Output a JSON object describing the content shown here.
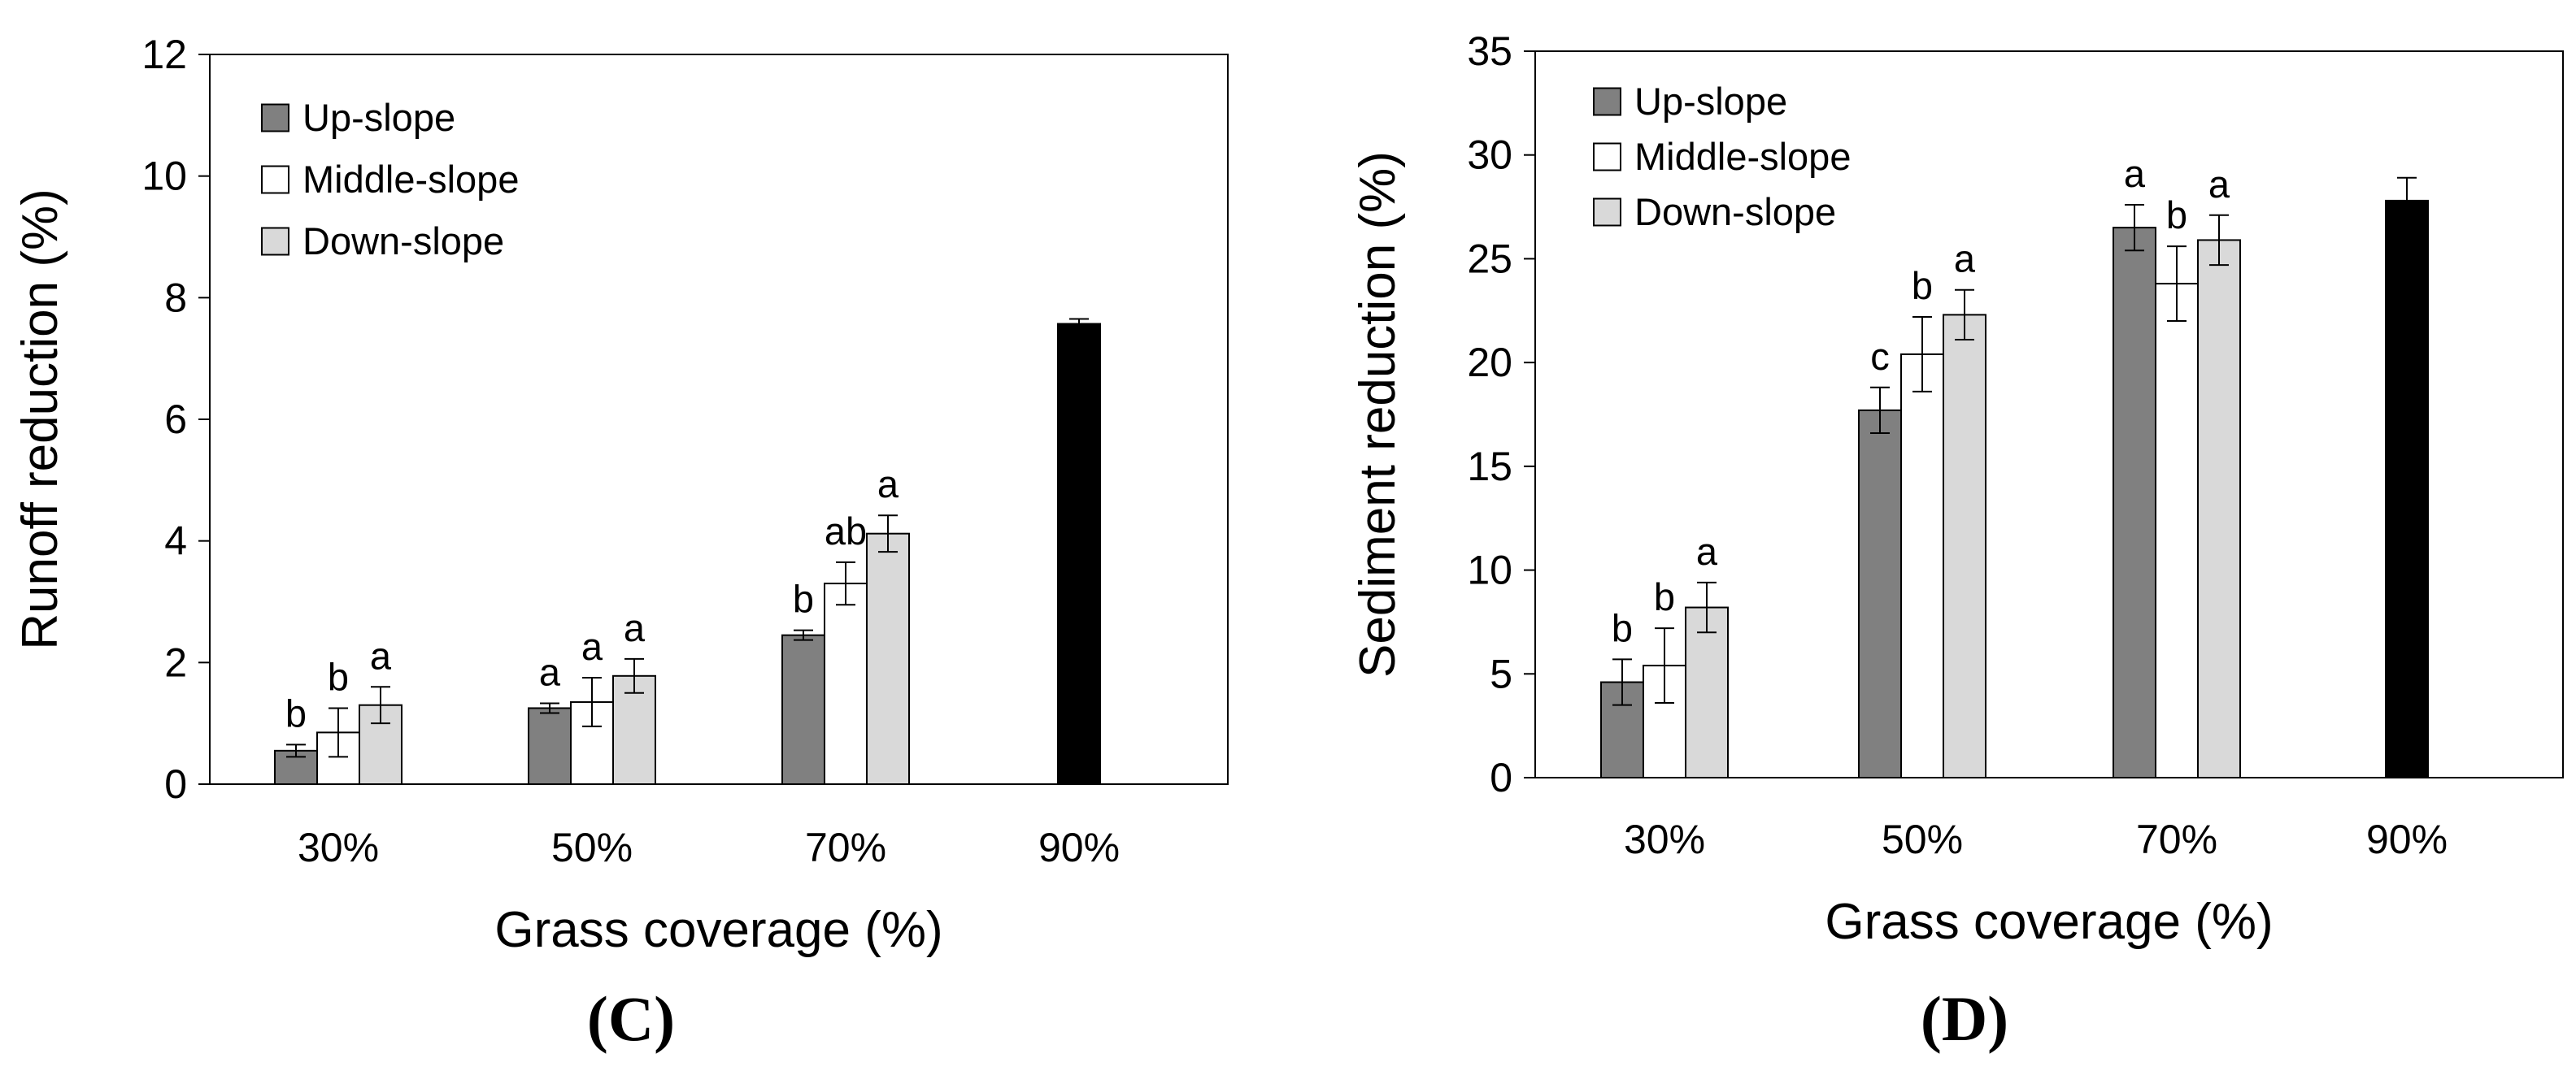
{
  "chart_data": [
    {
      "panel": "C",
      "type": "bar",
      "panel_label": "(C)",
      "xlabel": "Grass coverage (%)",
      "ylabel": "Runoff reduction (%)",
      "ylim": [
        0,
        12
      ],
      "yticks": [
        0,
        2,
        4,
        6,
        8,
        10,
        12
      ],
      "ytick_labels": [
        "0",
        "2",
        "4",
        "6",
        "8",
        "10",
        "12"
      ],
      "grid": false,
      "legend_position": "top-left",
      "categories": [
        "30%",
        "50%",
        "70%",
        "90%"
      ],
      "series": [
        {
          "name": "Up-slope",
          "color": "#808080",
          "values": [
            0.55,
            1.25,
            2.45,
            null
          ],
          "errors": [
            0.1,
            0.08,
            0.08,
            null
          ],
          "labels": [
            "b",
            "a",
            "b",
            ""
          ]
        },
        {
          "name": "Middle-slope",
          "color": "#ffffff",
          "values": [
            0.85,
            1.35,
            3.3,
            null
          ],
          "errors": [
            0.4,
            0.4,
            0.35,
            null
          ],
          "labels": [
            "b",
            "a",
            "ab",
            ""
          ]
        },
        {
          "name": "Down-slope",
          "color": "#d9d9d9",
          "values": [
            1.3,
            1.78,
            4.12,
            null
          ],
          "errors": [
            0.3,
            0.28,
            0.3,
            null
          ],
          "labels": [
            "a",
            "a",
            "a",
            ""
          ]
        }
      ],
      "extra_bars": [
        {
          "name": "90% coverage",
          "category_index": 3,
          "color": "#000000",
          "value": 7.57,
          "error": 0.08
        }
      ]
    },
    {
      "panel": "D",
      "type": "bar",
      "panel_label": "(D)",
      "xlabel": "Grass coverage (%)",
      "ylabel": "Sediment reduction (%)",
      "ylim": [
        0,
        35
      ],
      "yticks": [
        0,
        5,
        10,
        15,
        20,
        25,
        30,
        35
      ],
      "ytick_labels": [
        "0",
        "5",
        "10",
        "15",
        "20",
        "25",
        "30",
        "35"
      ],
      "grid": false,
      "legend_position": "top-left",
      "categories": [
        "30%",
        "50%",
        "70%",
        "90%"
      ],
      "series": [
        {
          "name": "Up-slope",
          "color": "#808080",
          "values": [
            4.6,
            17.7,
            26.5,
            null
          ],
          "errors": [
            1.1,
            1.1,
            1.1,
            null
          ],
          "labels": [
            "b",
            "c",
            "a",
            ""
          ]
        },
        {
          "name": "Middle-slope",
          "color": "#ffffff",
          "values": [
            5.4,
            20.4,
            23.8,
            null
          ],
          "errors": [
            1.8,
            1.8,
            1.8,
            null
          ],
          "labels": [
            "b",
            "b",
            "b",
            ""
          ]
        },
        {
          "name": "Down-slope",
          "color": "#d9d9d9",
          "values": [
            8.2,
            22.3,
            25.9,
            null
          ],
          "errors": [
            1.2,
            1.2,
            1.2,
            null
          ],
          "labels": [
            "a",
            "a",
            "a",
            ""
          ]
        }
      ],
      "extra_bars": [
        {
          "name": "90% coverage",
          "category_index": 3,
          "color": "#000000",
          "value": 27.8,
          "error": 1.1
        }
      ]
    }
  ]
}
